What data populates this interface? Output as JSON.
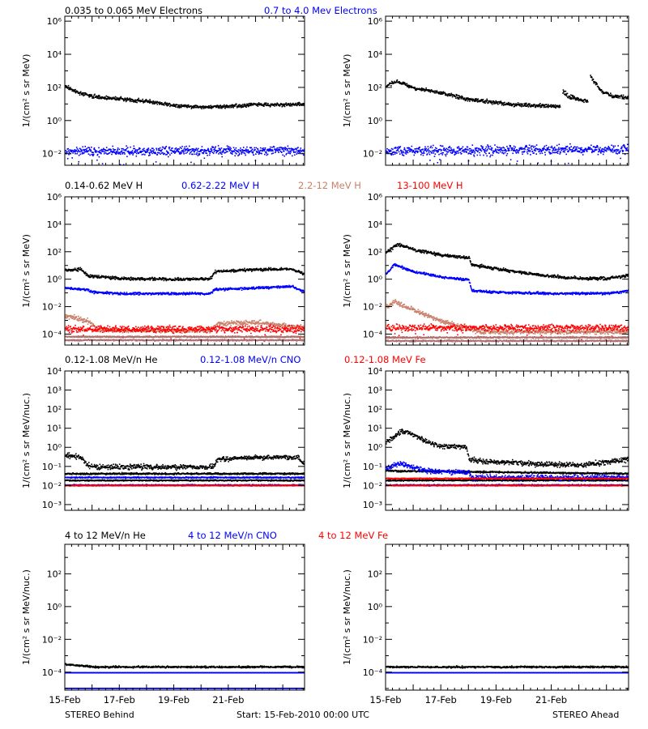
{
  "footer": {
    "left": "STEREO Behind",
    "center": "Start: 15-Feb-2010 00:00 UTC",
    "right": "STEREO Ahead"
  },
  "x_axis": {
    "start_day": 15,
    "end_day": 23.8,
    "ticks": [
      {
        "day": 15,
        "label": "15-Feb"
      },
      {
        "day": 17,
        "label": "17-Feb"
      },
      {
        "day": 19,
        "label": "19-Feb"
      },
      {
        "day": 21,
        "label": "21-Feb"
      }
    ]
  },
  "chart_data": [
    {
      "type": "scatter",
      "row": 0,
      "ylabel": "1/(cm² s sr MeV)",
      "yscale": "log",
      "ylim_exp": [
        -2.7,
        6.3
      ],
      "ytick_exps": [
        -2,
        0,
        2,
        4,
        6
      ],
      "legend": [
        {
          "label": "0.035 to 0.065 MeV Electrons",
          "color": "#000000"
        },
        {
          "label": "0.7 to 4.0 Mev Electrons",
          "color": "#0000ff"
        }
      ],
      "behind": [
        {
          "color": "#000000",
          "points": [
            [
              15.0,
              2.1
            ],
            [
              15.5,
              1.7
            ],
            [
              16.0,
              1.5
            ],
            [
              16.5,
              1.4
            ],
            [
              17.0,
              1.35
            ],
            [
              18.0,
              1.2
            ],
            [
              19.0,
              0.95
            ],
            [
              20.0,
              0.85
            ],
            [
              21.0,
              0.9
            ],
            [
              22.0,
              1.0
            ],
            [
              23.0,
              1.0
            ],
            [
              23.8,
              1.0
            ]
          ],
          "noise": 0.1
        },
        {
          "color": "#0000ff",
          "points": [
            [
              15.0,
              -1.8
            ],
            [
              23.8,
              -1.8
            ]
          ],
          "noise": 0.25
        }
      ],
      "ahead": [
        {
          "color": "#000000",
          "points": [
            [
              15.0,
              2.1
            ],
            [
              15.4,
              2.4
            ],
            [
              16.0,
              2.0
            ],
            [
              17.0,
              1.7
            ],
            [
              18.0,
              1.3
            ],
            [
              18.6,
              1.2
            ],
            [
              19.5,
              1.0
            ],
            [
              20.5,
              0.95
            ],
            [
              21.3,
              0.9
            ]
          ],
          "noise": 0.1
        },
        {
          "color": "#000000",
          "points": [
            [
              21.4,
              1.8
            ],
            [
              21.6,
              1.5
            ],
            [
              22.0,
              1.3
            ],
            [
              22.3,
              1.25
            ]
          ],
          "noise": 0.12
        },
        {
          "color": "#000000",
          "points": [
            [
              22.4,
              2.7
            ],
            [
              22.8,
              1.8
            ],
            [
              23.2,
              1.5
            ],
            [
              23.8,
              1.4
            ]
          ],
          "noise": 0.1
        },
        {
          "color": "#0000ff",
          "points": [
            [
              15.0,
              -1.8
            ],
            [
              23.8,
              -1.7
            ]
          ],
          "noise": 0.25
        }
      ]
    },
    {
      "type": "scatter",
      "row": 1,
      "ylabel": "1/(cm² s sr MeV)",
      "yscale": "log",
      "ylim_exp": [
        -4.8,
        6.0
      ],
      "ytick_exps": [
        -4,
        -2,
        0,
        2,
        4,
        6
      ],
      "legend": [
        {
          "label": "0.14-0.62 MeV H",
          "color": "#000000"
        },
        {
          "label": "0.62-2.22 MeV H",
          "color": "#0000ff"
        },
        {
          "label": "2.2-12 MeV H",
          "color": "#c8806a"
        },
        {
          "label": "13-100 MeV H",
          "color": "#ff0000"
        }
      ],
      "behind": [
        {
          "color": "#000000",
          "points": [
            [
              15.0,
              0.7
            ],
            [
              15.6,
              0.75
            ],
            [
              15.8,
              0.3
            ],
            [
              17.0,
              0.1
            ],
            [
              18.0,
              0.05
            ],
            [
              19.0,
              0.05
            ],
            [
              20.3,
              0.05
            ],
            [
              20.5,
              0.6
            ],
            [
              22.0,
              0.75
            ],
            [
              23.3,
              0.8
            ],
            [
              23.8,
              0.4
            ]
          ],
          "noise": 0.1
        },
        {
          "color": "#0000ff",
          "points": [
            [
              15.0,
              -0.6
            ],
            [
              15.8,
              -0.7
            ],
            [
              16.0,
              -0.9
            ],
            [
              17.0,
              -1.0
            ],
            [
              20.3,
              -1.0
            ],
            [
              20.5,
              -0.7
            ],
            [
              22.0,
              -0.6
            ],
            [
              23.3,
              -0.5
            ],
            [
              23.8,
              -0.9
            ]
          ],
          "noise": 0.08
        },
        {
          "color": "#c8806a",
          "points": [
            [
              15.0,
              -2.6
            ],
            [
              15.8,
              -3.0
            ],
            [
              16.2,
              -3.6
            ],
            [
              17.0,
              -3.7
            ],
            [
              20.3,
              -3.7
            ],
            [
              20.6,
              -3.2
            ],
            [
              22.0,
              -3.1
            ],
            [
              23.8,
              -3.5
            ]
          ],
          "noise": 0.15
        },
        {
          "color": "#ff0000",
          "points": [
            [
              15.0,
              -3.6
            ],
            [
              23.8,
              -3.6
            ]
          ],
          "noise": 0.22
        },
        {
          "color": "#b07070",
          "points": [
            [
              15.0,
              -4.15
            ],
            [
              23.8,
              -4.15
            ]
          ],
          "noise": 0.05
        },
        {
          "color": "#b07070",
          "points": [
            [
              15.0,
              -4.4
            ],
            [
              23.8,
              -4.4
            ]
          ],
          "noise": 0.05
        }
      ],
      "ahead": [
        {
          "color": "#000000",
          "points": [
            [
              15.0,
              2.0
            ],
            [
              15.4,
              2.6
            ],
            [
              16.0,
              2.2
            ],
            [
              17.0,
              1.8
            ],
            [
              18.0,
              1.6
            ],
            [
              18.1,
              1.1
            ],
            [
              19.0,
              0.8
            ],
            [
              20.0,
              0.5
            ],
            [
              21.0,
              0.25
            ],
            [
              22.0,
              0.1
            ],
            [
              23.0,
              0.1
            ],
            [
              23.8,
              0.3
            ]
          ],
          "noise": 0.1
        },
        {
          "color": "#0000ff",
          "points": [
            [
              15.0,
              0.4
            ],
            [
              15.3,
              1.1
            ],
            [
              16.0,
              0.6
            ],
            [
              17.0,
              0.2
            ],
            [
              18.0,
              0.0
            ],
            [
              18.1,
              -0.8
            ],
            [
              19.0,
              -0.9
            ],
            [
              21.0,
              -1.0
            ],
            [
              23.0,
              -1.0
            ],
            [
              23.8,
              -0.8
            ]
          ],
          "noise": 0.08
        },
        {
          "color": "#c8806a",
          "points": [
            [
              15.0,
              -2.0
            ],
            [
              15.3,
              -1.6
            ],
            [
              16.0,
              -2.2
            ],
            [
              17.0,
              -3.0
            ],
            [
              18.0,
              -3.6
            ],
            [
              18.5,
              -3.8
            ],
            [
              23.8,
              -3.8
            ]
          ],
          "noise": 0.15
        },
        {
          "color": "#ff0000",
          "points": [
            [
              15.0,
              -3.5
            ],
            [
              23.8,
              -3.5
            ]
          ],
          "noise": 0.22
        },
        {
          "color": "#b07070",
          "points": [
            [
              15.0,
              -4.2
            ],
            [
              23.8,
              -4.2
            ]
          ],
          "noise": 0.05
        },
        {
          "color": "#b07070",
          "points": [
            [
              15.0,
              -4.45
            ],
            [
              23.8,
              -4.45
            ]
          ],
          "noise": 0.05
        }
      ]
    },
    {
      "type": "scatter",
      "row": 2,
      "ylabel": "1/(cm² s sr MeV/nuc.)",
      "yscale": "log",
      "ylim_exp": [
        -3.3,
        4.0
      ],
      "ytick_exps": [
        -3,
        -2,
        -1,
        0,
        1,
        2,
        3,
        4
      ],
      "legend": [
        {
          "label": "0.12-1.08 MeV/n He",
          "color": "#000000"
        },
        {
          "label": "0.12-1.08 MeV/n CNO",
          "color": "#0000ff"
        },
        {
          "label": "0.12-1.08 MeV Fe",
          "color": "#ff0000"
        }
      ],
      "behind": [
        {
          "color": "#000000",
          "points": [
            [
              15.0,
              -0.4
            ],
            [
              15.6,
              -0.5
            ],
            [
              15.8,
              -0.9
            ],
            [
              16.2,
              -1.0
            ],
            [
              20.4,
              -1.0
            ],
            [
              20.6,
              -0.6
            ],
            [
              22.0,
              -0.5
            ],
            [
              23.5,
              -0.5
            ],
            [
              23.8,
              -0.9
            ]
          ],
          "noise": 0.12
        },
        {
          "color": "#000000",
          "points": [
            [
              15.0,
              -1.35
            ],
            [
              23.8,
              -1.35
            ]
          ],
          "noise": 0.04
        },
        {
          "color": "#000000",
          "points": [
            [
              15.0,
              -1.7
            ],
            [
              23.8,
              -1.7
            ]
          ],
          "noise": 0.03
        },
        {
          "color": "#0000ff",
          "points": [
            [
              15.0,
              -1.55
            ],
            [
              23.8,
              -1.55
            ]
          ],
          "noise": 0.03
        },
        {
          "color": "#0000ff",
          "points": [
            [
              15.0,
              -1.95
            ],
            [
              23.8,
              -1.95
            ]
          ],
          "noise": 0.03
        },
        {
          "color": "#ff0000",
          "points": [
            [
              15.0,
              -1.97
            ],
            [
              23.8,
              -1.97
            ]
          ],
          "noise": 0.02
        }
      ],
      "ahead": [
        {
          "color": "#000000",
          "points": [
            [
              15.0,
              0.3
            ],
            [
              15.6,
              0.9
            ],
            [
              16.0,
              0.7
            ],
            [
              16.5,
              0.3
            ],
            [
              17.0,
              0.1
            ],
            [
              17.9,
              0.05
            ],
            [
              18.0,
              -0.6
            ],
            [
              18.5,
              -0.7
            ],
            [
              19.5,
              -0.75
            ],
            [
              20.5,
              -0.85
            ],
            [
              22.0,
              -0.9
            ],
            [
              23.8,
              -0.6
            ]
          ],
          "noise": 0.12
        },
        {
          "color": "#000000",
          "points": [
            [
              15.0,
              -1.2
            ],
            [
              23.8,
              -1.35
            ]
          ],
          "noise": 0.04
        },
        {
          "color": "#000000",
          "points": [
            [
              15.0,
              -1.7
            ],
            [
              23.8,
              -1.7
            ]
          ],
          "noise": 0.03
        },
        {
          "color": "#0000ff",
          "points": [
            [
              15.0,
              -1.1
            ],
            [
              15.5,
              -0.8
            ],
            [
              16.5,
              -1.2
            ],
            [
              18.0,
              -1.3
            ],
            [
              18.1,
              -1.55
            ],
            [
              23.8,
              -1.55
            ]
          ],
          "noise": 0.12
        },
        {
          "color": "#0000ff",
          "points": [
            [
              15.0,
              -1.95
            ],
            [
              23.8,
              -1.95
            ]
          ],
          "noise": 0.03
        },
        {
          "color": "#ff0000",
          "points": [
            [
              15.0,
              -1.97
            ],
            [
              23.8,
              -1.97
            ]
          ],
          "noise": 0.02
        },
        {
          "color": "#ff0000",
          "points": [
            [
              15.0,
              -1.6
            ],
            [
              23.8,
              -1.6
            ]
          ],
          "noise": 0.02
        }
      ]
    },
    {
      "type": "scatter",
      "row": 3,
      "ylabel": "1/(cm² s sr MeV/nuc.)",
      "yscale": "log",
      "ylim_exp": [
        -5.1,
        3.8
      ],
      "ytick_exps": [
        -4,
        -2,
        0,
        2
      ],
      "legend": [
        {
          "label": "4 to 12 MeV/n He",
          "color": "#000000"
        },
        {
          "label": "4 to 12 MeV/n CNO",
          "color": "#0000ff"
        },
        {
          "label": "4 to 12 MeV Fe",
          "color": "#ff0000"
        }
      ],
      "behind": [
        {
          "color": "#000000",
          "points": [
            [
              15.0,
              -3.5
            ],
            [
              15.8,
              -3.6
            ],
            [
              16.0,
              -3.65
            ],
            [
              23.8,
              -3.65
            ]
          ],
          "noise": 0.05
        },
        {
          "color": "#0000ff",
          "points": [
            [
              15.0,
              -4.0
            ],
            [
              23.8,
              -4.0
            ]
          ],
          "noise": 0.0
        },
        {
          "color": "#0000ff",
          "points": [
            [
              15.0,
              -4.95
            ],
            [
              23.8,
              -4.95
            ]
          ],
          "noise": 0.0
        }
      ],
      "ahead": [
        {
          "color": "#000000",
          "points": [
            [
              15.0,
              -3.65
            ],
            [
              23.8,
              -3.65
            ]
          ],
          "noise": 0.05
        },
        {
          "color": "#0000ff",
          "points": [
            [
              15.0,
              -4.0
            ],
            [
              23.8,
              -4.0
            ]
          ],
          "noise": 0.0
        }
      ]
    }
  ]
}
